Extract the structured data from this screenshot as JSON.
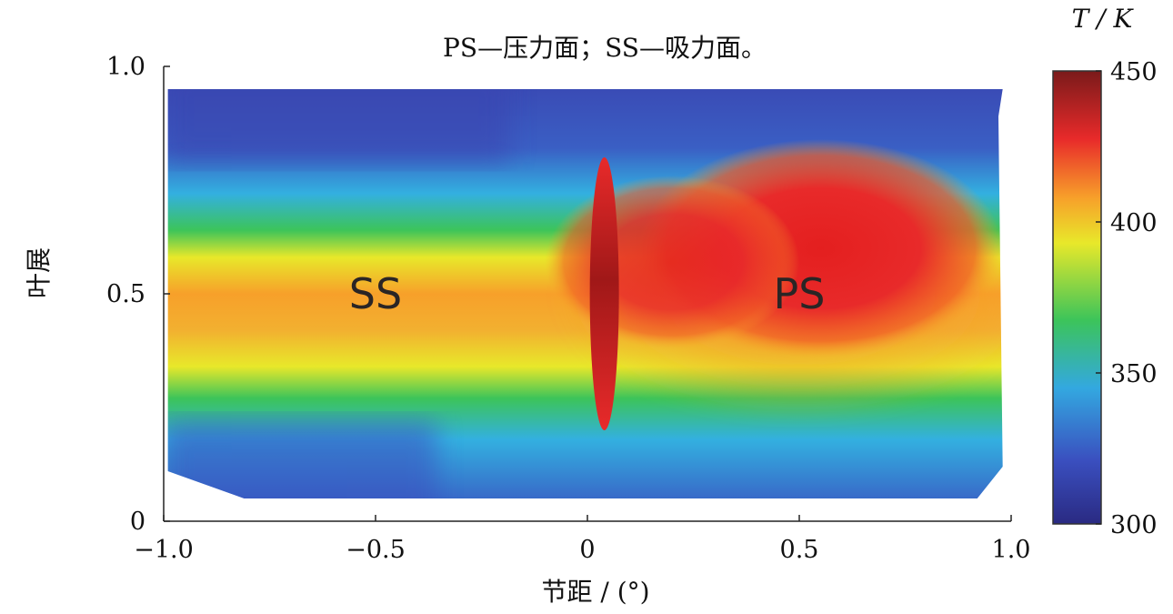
{
  "chart_data": {
    "type": "heatmap",
    "title": "PS—压力面；SS—吸力面。",
    "xlabel": "节距 / (°)",
    "ylabel": "叶展",
    "xlim": [
      -1.0,
      1.0
    ],
    "ylim": [
      0,
      1.0
    ],
    "x_ticks": [
      "−1.0",
      "−0.5",
      "0",
      "0.5",
      "1.0"
    ],
    "x_tick_values": [
      -1.0,
      -0.5,
      0,
      0.5,
      1.0
    ],
    "y_ticks": [
      "0",
      "0.5",
      "1.0"
    ],
    "y_tick_values": [
      0,
      0.5,
      1.0
    ],
    "colorbar": {
      "label": "T / K",
      "range": [
        300,
        450
      ],
      "ticks": [
        "300",
        "350",
        "400",
        "450"
      ],
      "tick_values": [
        300,
        350,
        400,
        450
      ],
      "colors": [
        "#2a2a82",
        "#3a5fc4",
        "#33b0e0",
        "#3cc45a",
        "#e8e82a",
        "#f7a02a",
        "#e82a2a",
        "#8a1a1a"
      ]
    },
    "annotations": [
      {
        "text": "SS",
        "x": -0.5,
        "y": 0.5
      },
      {
        "text": "PS",
        "x": 0.5,
        "y": 0.5
      }
    ],
    "field_summary": {
      "spanwise_T_at_mid_pitch_approx": [
        {
          "span": 0.1,
          "T": 320
        },
        {
          "span": 0.3,
          "T": 375
        },
        {
          "span": 0.5,
          "T": 410
        },
        {
          "span": 0.7,
          "T": 375
        },
        {
          "span": 0.9,
          "T": 320
        }
      ],
      "hot_core_PS_T_approx": 430,
      "peak_T_near_pitch_0_approx": 450
    }
  }
}
